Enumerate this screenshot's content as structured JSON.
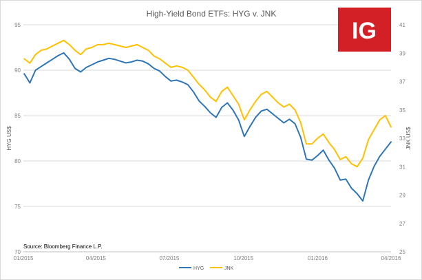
{
  "chart_data": {
    "type": "line",
    "title": "High-Yield Bond ETFs: HYG v. JNK",
    "ylabel_left": "HYG US$",
    "ylabel_right": "JNK US$",
    "source_note": "Source: Bloomberg Finance L.P.",
    "brand_logo": "IG",
    "grid": true,
    "legend_position": "bottom",
    "x_range": [
      "2015-01-01",
      "2016-04-01"
    ],
    "x_ticks": [
      "01/2015",
      "04/2015",
      "07/2015",
      "10/2015",
      "01/2016",
      "04/2016"
    ],
    "ylim_left": [
      70,
      95
    ],
    "yticks_left": [
      "70",
      "75",
      "80",
      "85",
      "90",
      "95"
    ],
    "ylim_right": [
      25,
      41
    ],
    "yticks_right": [
      "25",
      "27",
      "29",
      "31",
      "33",
      "35",
      "37",
      "39",
      "41"
    ],
    "series": [
      {
        "name": "HYG",
        "axis": "left",
        "color": "#2e75b6",
        "x": [
          "2015-01-02",
          "2015-01-09",
          "2015-01-16",
          "2015-01-23",
          "2015-01-30",
          "2015-02-06",
          "2015-02-13",
          "2015-02-20",
          "2015-02-27",
          "2015-03-06",
          "2015-03-13",
          "2015-03-20",
          "2015-03-27",
          "2015-04-03",
          "2015-04-10",
          "2015-04-17",
          "2015-04-24",
          "2015-05-01",
          "2015-05-08",
          "2015-05-15",
          "2015-05-22",
          "2015-05-29",
          "2015-06-05",
          "2015-06-12",
          "2015-06-19",
          "2015-06-26",
          "2015-07-03",
          "2015-07-10",
          "2015-07-17",
          "2015-07-24",
          "2015-07-31",
          "2015-08-07",
          "2015-08-14",
          "2015-08-21",
          "2015-08-28",
          "2015-09-04",
          "2015-09-11",
          "2015-09-18",
          "2015-09-25",
          "2015-10-02",
          "2015-10-09",
          "2015-10-16",
          "2015-10-23",
          "2015-10-30",
          "2015-11-06",
          "2015-11-13",
          "2015-11-20",
          "2015-11-27",
          "2015-12-04",
          "2015-12-11",
          "2015-12-18",
          "2015-12-25",
          "2016-01-01",
          "2016-01-08",
          "2016-01-15",
          "2016-01-22",
          "2016-01-29",
          "2016-02-05",
          "2016-02-12",
          "2016-02-19",
          "2016-02-26",
          "2016-03-04",
          "2016-03-11",
          "2016-03-18",
          "2016-03-25",
          "2016-04-01"
        ],
        "values": [
          89.6,
          88.6,
          90.0,
          90.4,
          90.8,
          91.2,
          91.6,
          91.9,
          91.2,
          90.2,
          89.8,
          90.3,
          90.6,
          90.9,
          91.1,
          91.3,
          91.2,
          91.0,
          90.8,
          90.9,
          91.1,
          91.0,
          90.7,
          90.2,
          89.9,
          89.3,
          88.8,
          88.9,
          88.7,
          88.4,
          87.6,
          86.6,
          86.0,
          85.3,
          84.8,
          85.9,
          86.4,
          85.6,
          84.5,
          82.7,
          83.8,
          84.8,
          85.5,
          85.7,
          85.2,
          84.7,
          84.2,
          84.6,
          84.1,
          82.6,
          80.2,
          80.1,
          80.6,
          81.2,
          80.1,
          79.2,
          77.9,
          78.0,
          77.0,
          76.4,
          75.6,
          77.9,
          79.4,
          80.5,
          81.3,
          82.1
        ]
      },
      {
        "name": "JNK",
        "axis": "right",
        "color": "#ffc000",
        "x": [
          "2015-01-02",
          "2015-01-09",
          "2015-01-16",
          "2015-01-23",
          "2015-01-30",
          "2015-02-06",
          "2015-02-13",
          "2015-02-20",
          "2015-02-27",
          "2015-03-06",
          "2015-03-13",
          "2015-03-20",
          "2015-03-27",
          "2015-04-03",
          "2015-04-10",
          "2015-04-17",
          "2015-04-24",
          "2015-05-01",
          "2015-05-08",
          "2015-05-15",
          "2015-05-22",
          "2015-05-29",
          "2015-06-05",
          "2015-06-12",
          "2015-06-19",
          "2015-06-26",
          "2015-07-03",
          "2015-07-10",
          "2015-07-17",
          "2015-07-24",
          "2015-07-31",
          "2015-08-07",
          "2015-08-14",
          "2015-08-21",
          "2015-08-28",
          "2015-09-04",
          "2015-09-11",
          "2015-09-18",
          "2015-09-25",
          "2015-10-02",
          "2015-10-09",
          "2015-10-16",
          "2015-10-23",
          "2015-10-30",
          "2015-11-06",
          "2015-11-13",
          "2015-11-20",
          "2015-11-27",
          "2015-12-04",
          "2015-12-11",
          "2015-12-18",
          "2015-12-25",
          "2016-01-01",
          "2016-01-08",
          "2016-01-15",
          "2016-01-22",
          "2016-01-29",
          "2016-02-05",
          "2016-02-12",
          "2016-02-19",
          "2016-02-26",
          "2016-03-04",
          "2016-03-11",
          "2016-03-18",
          "2016-03-25",
          "2016-04-01"
        ],
        "values": [
          38.6,
          38.3,
          38.9,
          39.2,
          39.3,
          39.5,
          39.7,
          39.9,
          39.6,
          39.2,
          38.9,
          39.3,
          39.4,
          39.6,
          39.6,
          39.7,
          39.6,
          39.5,
          39.4,
          39.5,
          39.6,
          39.4,
          39.2,
          38.8,
          38.6,
          38.3,
          38.0,
          38.1,
          38.0,
          37.8,
          37.3,
          36.8,
          36.4,
          35.9,
          35.6,
          36.3,
          36.6,
          36.0,
          35.4,
          34.3,
          35.0,
          35.6,
          36.1,
          36.3,
          35.9,
          35.5,
          35.2,
          35.4,
          35.0,
          34.1,
          32.6,
          32.6,
          33.0,
          33.3,
          32.7,
          32.2,
          31.5,
          31.7,
          31.2,
          31.0,
          31.6,
          32.9,
          33.6,
          34.3,
          34.6,
          33.8
        ]
      }
    ]
  }
}
